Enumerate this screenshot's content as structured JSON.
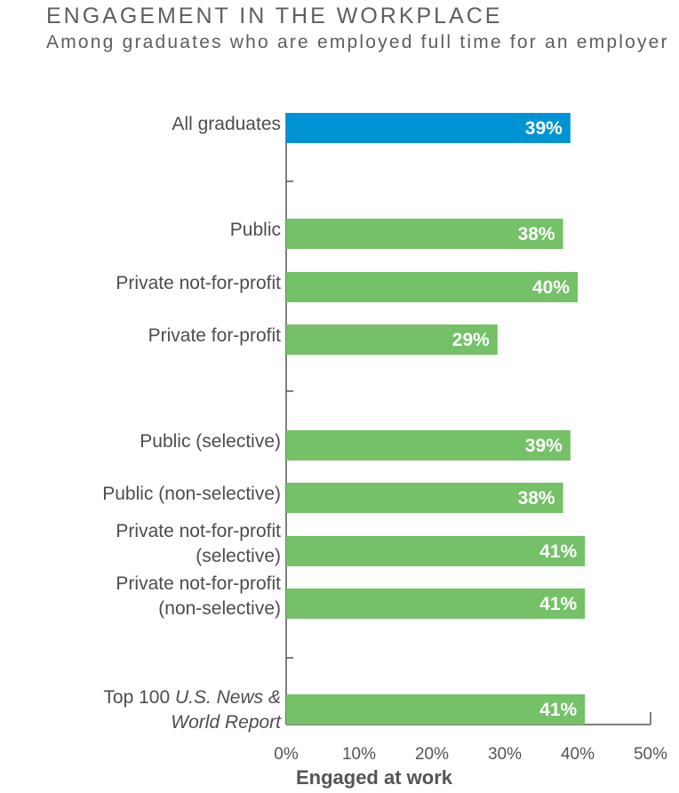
{
  "chart_data": {
    "type": "bar",
    "orientation": "horizontal",
    "title": "ENGAGEMENT IN THE WORKPLACE",
    "subtitle": "Among graduates who are employed full time for an employer",
    "xlabel": "Engaged at work",
    "xlim": [
      0,
      50
    ],
    "xticks": [
      "0%",
      "10%",
      "20%",
      "30%",
      "40%",
      "50%"
    ],
    "grid": false,
    "colors": {
      "highlight": "#0093D3",
      "default": "#74C168"
    },
    "bars": [
      {
        "label_lines": [
          "All graduates"
        ],
        "value": 39,
        "value_label": "39%",
        "highlight": true
      },
      {
        "label_lines": [
          "Public"
        ],
        "value": 38,
        "value_label": "38%",
        "highlight": false
      },
      {
        "label_lines": [
          "Private not-for-profit"
        ],
        "value": 40,
        "value_label": "40%",
        "highlight": false
      },
      {
        "label_lines": [
          "Private for-profit"
        ],
        "value": 29,
        "value_label": "29%",
        "highlight": false
      },
      {
        "label_lines": [
          "Public (selective)"
        ],
        "value": 39,
        "value_label": "39%",
        "highlight": false
      },
      {
        "label_lines": [
          "Public (non-selective)"
        ],
        "value": 38,
        "value_label": "38%",
        "highlight": false
      },
      {
        "label_lines": [
          "Private not-for-profit",
          "(selective)"
        ],
        "value": 41,
        "value_label": "41%",
        "highlight": false
      },
      {
        "label_lines": [
          "Private not-for-profit",
          "(non-selective)"
        ],
        "value": 41,
        "value_label": "41%",
        "highlight": false
      },
      {
        "label_lines": [
          "Top 100 ",
          "U.S. News &",
          "World Report"
        ],
        "italic_parts": [
          false,
          true,
          true
        ],
        "value": 41,
        "value_label": "41%",
        "highlight": false
      }
    ]
  }
}
